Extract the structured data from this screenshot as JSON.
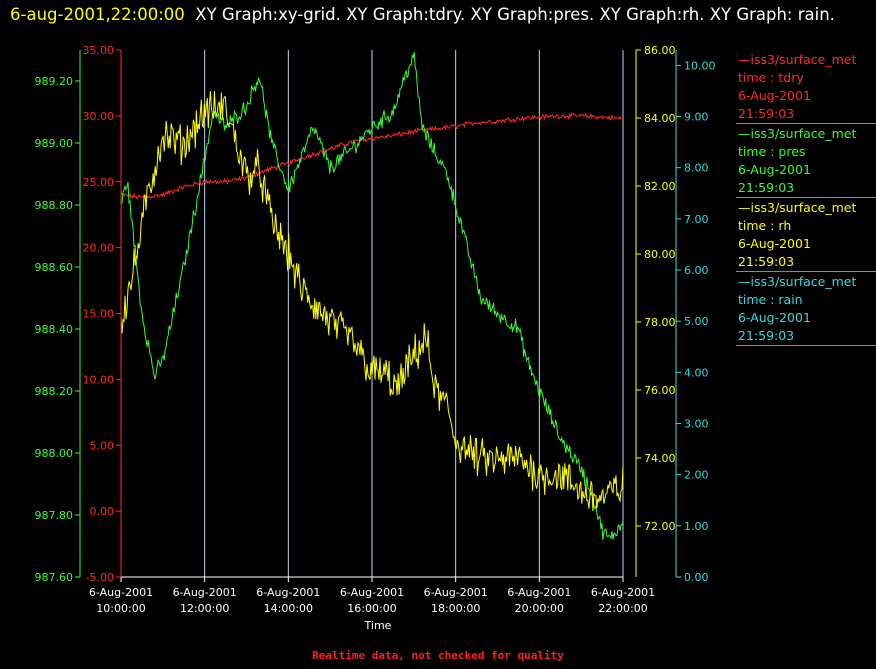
{
  "header": {
    "timestamp": "6-aug-2001,22:00:00",
    "graphs": "XY Graph:xy-grid.  XY Graph:tdry.  XY Graph:pres.  XY Graph:rh.  XY Graph: rain."
  },
  "footer": {
    "text": "Realtime data, not checked for quality"
  },
  "colors": {
    "tdry": "#ff2a2a",
    "pres": "#33ff33",
    "rh": "#ffff00",
    "rain": "#33dddd",
    "grid": "#b8d8f0",
    "axis_text": "#ffffff"
  },
  "legend": [
    {
      "source": "iss3/surface_met",
      "var": "time : tdry",
      "date": "6-Aug-2001",
      "time": "21:59:03",
      "color": "#ff2a2a"
    },
    {
      "source": "iss3/surface_met",
      "var": "time : pres",
      "date": "6-Aug-2001",
      "time": "21:59:03",
      "color": "#33ff33"
    },
    {
      "source": "iss3/surface_met",
      "var": "time : rh",
      "date": "6-Aug-2001",
      "time": "21:59:03",
      "color": "#ffff00"
    },
    {
      "source": "iss3/surface_met",
      "var": "time : rain",
      "date": "6-Aug-2001",
      "time": "21:59:03",
      "color": "#33dddd"
    }
  ],
  "chart_data": {
    "type": "line",
    "title": "",
    "xlabel": "Time",
    "x_ticks": [
      {
        "date": "6-Aug-2001",
        "time": "10:00:00",
        "hour": 10
      },
      {
        "date": "6-Aug-2001",
        "time": "12:00:00",
        "hour": 12
      },
      {
        "date": "6-Aug-2001",
        "time": "14:00:00",
        "hour": 14
      },
      {
        "date": "6-Aug-2001",
        "time": "16:00:00",
        "hour": 16
      },
      {
        "date": "6-Aug-2001",
        "time": "18:00:00",
        "hour": 18
      },
      {
        "date": "6-Aug-2001",
        "time": "20:00:00",
        "hour": 20
      },
      {
        "date": "6-Aug-2001",
        "time": "22:00:00",
        "hour": 22
      }
    ],
    "xlim": [
      10,
      22
    ],
    "grid": true,
    "legend_position": "right",
    "axes": [
      {
        "id": "pres",
        "side": "left-outer",
        "lim": [
          987.6,
          989.3
        ],
        "ticks": [
          "987.60",
          "987.80",
          "988.00",
          "988.20",
          "988.40",
          "988.60",
          "988.80",
          "989.00",
          "989.20"
        ],
        "tick_values": [
          987.6,
          987.8,
          988.0,
          988.2,
          988.4,
          988.6,
          988.8,
          989.0,
          989.2
        ]
      },
      {
        "id": "tdry",
        "side": "left-inner",
        "lim": [
          -5,
          35
        ],
        "ticks": [
          "-5.00",
          "0.00",
          "5.00",
          "10.00",
          "15.00",
          "20.00",
          "25.00",
          "30.00",
          "35.00"
        ],
        "tick_values": [
          -5,
          0,
          5,
          10,
          15,
          20,
          25,
          30,
          35
        ]
      },
      {
        "id": "rh",
        "side": "right-inner",
        "lim": [
          70.5,
          86
        ],
        "ticks": [
          "72.00",
          "74.00",
          "76.00",
          "78.00",
          "80.00",
          "82.00",
          "84.00",
          "86.00"
        ],
        "tick_values": [
          72,
          74,
          76,
          78,
          80,
          82,
          84,
          86
        ]
      },
      {
        "id": "rain",
        "side": "right-outer",
        "lim": [
          0,
          10.3
        ],
        "ticks": [
          "0.00",
          "1.00",
          "2.00",
          "3.00",
          "4.00",
          "5.00",
          "6.00",
          "7.00",
          "8.00",
          "9.00",
          "10.00"
        ],
        "tick_values": [
          0,
          1,
          2,
          3,
          4,
          5,
          6,
          7,
          8,
          9,
          10
        ]
      }
    ],
    "series": [
      {
        "name": "tdry",
        "axis": "tdry",
        "noise": 0.15,
        "x": [
          10.0,
          10.5,
          11.0,
          11.5,
          12.0,
          12.5,
          13.0,
          13.5,
          14.0,
          14.5,
          15.0,
          15.5,
          16.0,
          16.5,
          17.0,
          17.5,
          18.0,
          18.5,
          19.0,
          19.5,
          20.0,
          20.5,
          21.0,
          21.5,
          22.0
        ],
        "y": [
          24.0,
          23.8,
          24.0,
          24.6,
          25.0,
          25.0,
          25.3,
          25.9,
          26.4,
          27.0,
          27.5,
          28.0,
          28.3,
          28.5,
          28.8,
          29.0,
          29.2,
          29.5,
          29.6,
          29.8,
          29.9,
          30.0,
          30.0,
          29.9,
          29.8
        ]
      },
      {
        "name": "pres",
        "axis": "pres",
        "noise": 0.02,
        "x": [
          10.0,
          10.15,
          10.5,
          10.8,
          11.0,
          11.5,
          12.0,
          12.2,
          12.5,
          13.0,
          13.3,
          13.6,
          14.0,
          14.3,
          14.6,
          15.0,
          15.5,
          16.0,
          16.5,
          16.8,
          17.0,
          17.2,
          17.5,
          17.8,
          18.0,
          18.3,
          18.6,
          19.0,
          19.5,
          19.7,
          20.0,
          20.5,
          21.0,
          21.3,
          21.5,
          21.7,
          22.0
        ],
        "y": [
          988.8,
          988.88,
          988.45,
          988.25,
          988.3,
          988.6,
          988.95,
          989.1,
          989.05,
          989.12,
          989.22,
          989.0,
          988.85,
          988.95,
          989.05,
          988.92,
          988.98,
          989.05,
          989.1,
          989.22,
          989.28,
          989.05,
          988.97,
          988.9,
          988.8,
          988.65,
          988.5,
          988.45,
          988.4,
          988.3,
          988.2,
          988.05,
          987.95,
          987.85,
          987.75,
          987.72,
          987.78
        ]
      },
      {
        "name": "rh",
        "axis": "rh",
        "noise": 0.45,
        "x": [
          10.0,
          10.3,
          10.6,
          11.0,
          11.5,
          12.0,
          12.5,
          13.0,
          13.3,
          13.6,
          14.0,
          14.3,
          14.6,
          15.0,
          15.5,
          16.0,
          16.3,
          16.6,
          17.0,
          17.3,
          17.5,
          17.8,
          18.0,
          18.5,
          19.0,
          19.5,
          20.0,
          20.5,
          21.0,
          21.5,
          22.0
        ],
        "y": [
          78.0,
          79.5,
          81.5,
          83.5,
          83.2,
          84.2,
          84.3,
          82.3,
          82.5,
          81.0,
          80.0,
          79.0,
          78.5,
          78.0,
          77.5,
          76.5,
          76.5,
          76.0,
          77.0,
          77.5,
          76.0,
          75.5,
          74.5,
          74.0,
          73.9,
          74.0,
          73.5,
          73.5,
          73.0,
          72.8,
          73.2
        ]
      },
      {
        "name": "rain",
        "axis": "rain",
        "noise": 0,
        "x": [
          10.0,
          22.0
        ],
        "y": [
          0.0,
          0.0
        ]
      }
    ]
  }
}
